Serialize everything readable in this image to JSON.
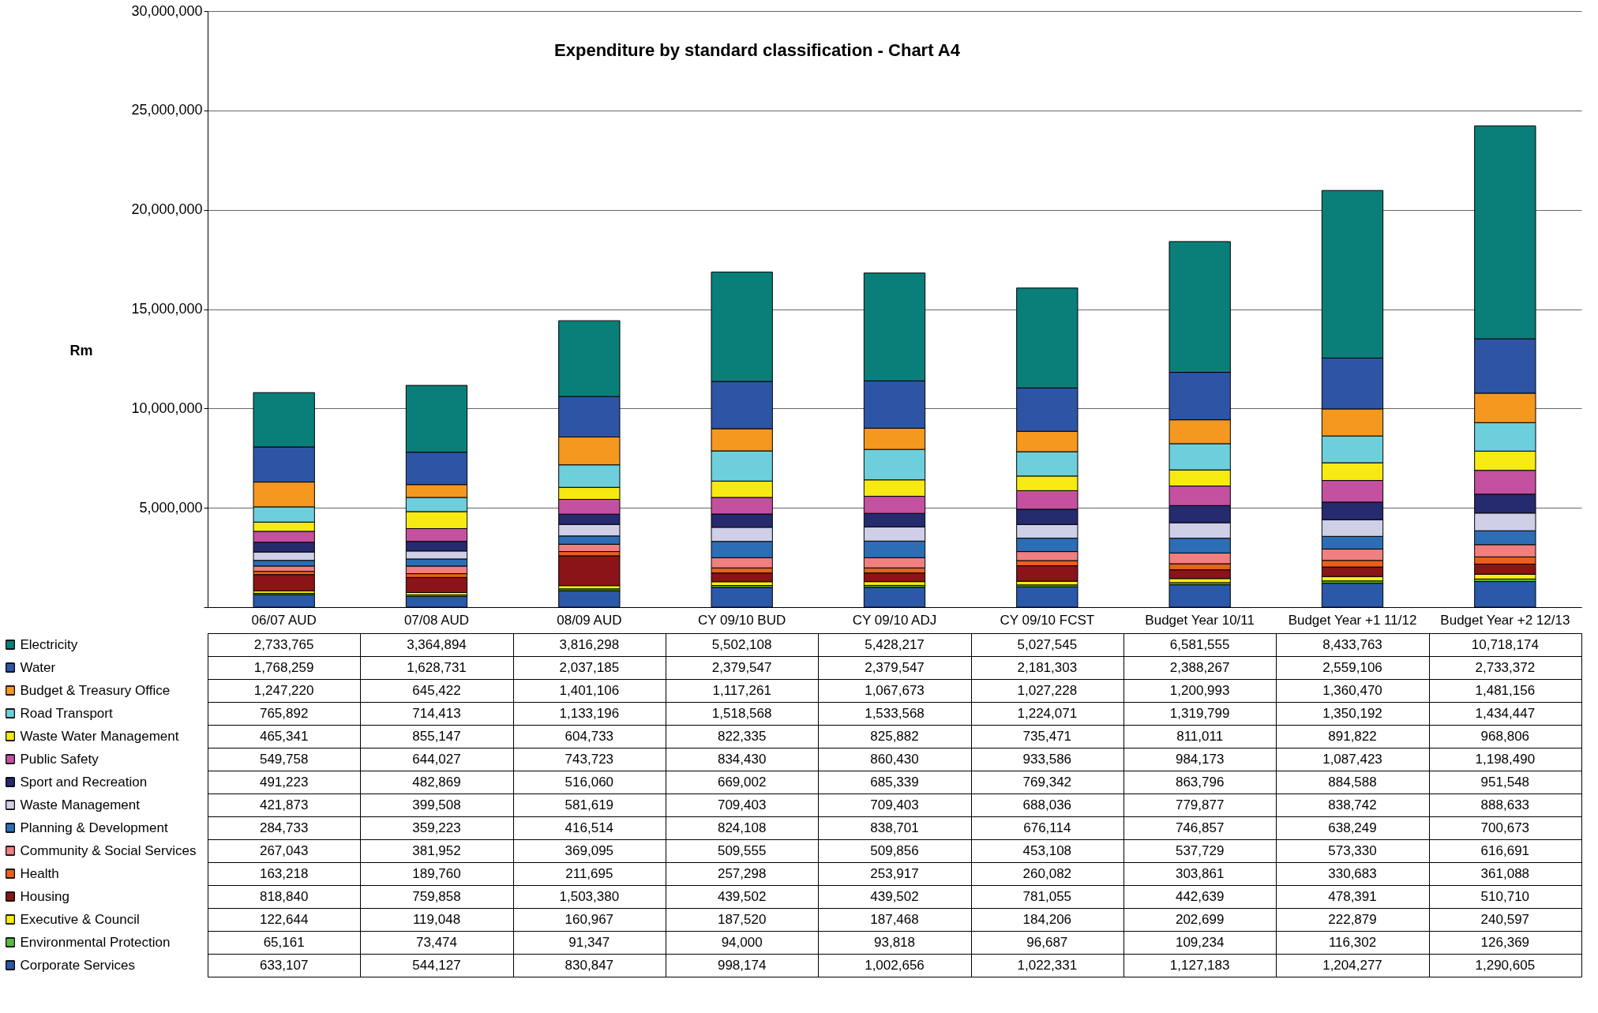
{
  "chart_data": {
    "type": "bar",
    "title": "Expenditure by standard classification - Chart A4",
    "ylabel": "Rm",
    "categories": [
      "06/07 AUD",
      "07/08 AUD",
      "08/09 AUD",
      "CY 09/10 BUD",
      "CY  09/10 ADJ",
      "CY 09/10 FCST",
      "Budget Year 10/11",
      "Budget Year +1 11/12",
      "Budget Year +2 12/13"
    ],
    "stacked": true,
    "ylim": [
      0,
      30000000
    ],
    "yticks": [
      {
        "value": 0,
        "label": null
      },
      {
        "value": 5000000,
        "label": "5,000,000"
      },
      {
        "value": 10000000,
        "label": "10,000,000"
      },
      {
        "value": 15000000,
        "label": "15,000,000"
      },
      {
        "value": 20000000,
        "label": "20,000,000"
      },
      {
        "value": 25000000,
        "label": "25,000,000"
      },
      {
        "value": 30000000,
        "label": "30,000,000"
      }
    ],
    "grid": "y",
    "legend": "bottom",
    "series": [
      {
        "name": "Corporate Services",
        "color": "#2b58a8",
        "values": [
          633107,
          544127,
          830847,
          998174,
          1002656,
          1022331,
          1127183,
          1204277,
          1290605
        ],
        "value_labels": [
          "633,107",
          "544,127",
          "830,847",
          "998,174",
          "1,002,656",
          "1,022,331",
          "1,127,183",
          "1,204,277",
          "1,290,605"
        ]
      },
      {
        "name": "Environmental Protection",
        "color": "#5bb947",
        "values": [
          65161,
          73474,
          91347,
          94000,
          93818,
          96687,
          109234,
          116302,
          126369
        ],
        "value_labels": [
          "65,161",
          "73,474",
          "91,347",
          "94,000",
          "93,818",
          "96,687",
          "109,234",
          "116,302",
          "126,369"
        ]
      },
      {
        "name": "Executive & Council",
        "color": "#f7ee0e",
        "values": [
          122644,
          119048,
          160967,
          187520,
          187468,
          184206,
          202699,
          222879,
          240597
        ],
        "value_labels": [
          "122,644",
          "119,048",
          "160,967",
          "187,520",
          "187,468",
          "184,206",
          "202,699",
          "222,879",
          "240,597"
        ]
      },
      {
        "name": "Housing",
        "color": "#8a1417",
        "values": [
          818840,
          759858,
          1503380,
          439502,
          439502,
          781055,
          442639,
          478391,
          510710
        ],
        "value_labels": [
          "818,840",
          "759,858",
          "1,503,380",
          "439,502",
          "439,502",
          "781,055",
          "442,639",
          "478,391",
          "510,710"
        ]
      },
      {
        "name": "Health",
        "color": "#e8601e",
        "values": [
          163218,
          189760,
          211695,
          257298,
          253917,
          260082,
          303861,
          330683,
          361088
        ],
        "value_labels": [
          "163,218",
          "189,760",
          "211,695",
          "257,298",
          "253,917",
          "260,082",
          "303,861",
          "330,683",
          "361,088"
        ]
      },
      {
        "name": "Community & Social Services",
        "color": "#f07f80",
        "values": [
          267043,
          381952,
          369095,
          509555,
          509856,
          453108,
          537729,
          573330,
          616691
        ],
        "value_labels": [
          "267,043",
          "381,952",
          "369,095",
          "509,555",
          "509,856",
          "453,108",
          "537,729",
          "573,330",
          "616,691"
        ]
      },
      {
        "name": "Planning & Development",
        "color": "#2d6db5",
        "values": [
          284733,
          359223,
          416514,
          824108,
          838701,
          676114,
          746857,
          638249,
          700673
        ],
        "value_labels": [
          "284,733",
          "359,223",
          "416,514",
          "824,108",
          "838,701",
          "676,114",
          "746,857",
          "638,249",
          "700,673"
        ]
      },
      {
        "name": "Waste Management",
        "color": "#cfcfe8",
        "values": [
          421873,
          399508,
          581619,
          709403,
          709403,
          688036,
          779877,
          838742,
          888633
        ],
        "value_labels": [
          "421,873",
          "399,508",
          "581,619",
          "709,403",
          "709,403",
          "688,036",
          "779,877",
          "838,742",
          "888,633"
        ]
      },
      {
        "name": "Sport and Recreation",
        "color": "#262a6e",
        "values": [
          491223,
          482869,
          516060,
          669002,
          685339,
          769342,
          863796,
          884588,
          951548
        ],
        "value_labels": [
          "491,223",
          "482,869",
          "516,060",
          "669,002",
          "685,339",
          "769,342",
          "863,796",
          "884,588",
          "951,548"
        ]
      },
      {
        "name": "Public Safety",
        "color": "#c450a0",
        "values": [
          549758,
          644027,
          743723,
          834430,
          860430,
          933586,
          984173,
          1087423,
          1198490
        ],
        "value_labels": [
          "549,758",
          "644,027",
          "743,723",
          "834,430",
          "860,430",
          "933,586",
          "984,173",
          "1,087,423",
          "1,198,490"
        ]
      },
      {
        "name": "Waste Water Management",
        "color": "#f6ea12",
        "values": [
          465341,
          855147,
          604733,
          822335,
          825882,
          735471,
          811011,
          891822,
          968806
        ],
        "value_labels": [
          "465,341",
          "855,147",
          "604,733",
          "822,335",
          "825,882",
          "735,471",
          "811,011",
          "891,822",
          "968,806"
        ]
      },
      {
        "name": "Road Transport",
        "color": "#6dcfdc",
        "values": [
          765892,
          714413,
          1133196,
          1518568,
          1533568,
          1224071,
          1319799,
          1350192,
          1434447
        ],
        "value_labels": [
          "765,892",
          "714,413",
          "1,133,196",
          "1,518,568",
          "1,533,568",
          "1,224,071",
          "1,319,799",
          "1,350,192",
          "1,434,447"
        ]
      },
      {
        "name": "Budget & Treasury Office",
        "color": "#f4981f",
        "values": [
          1247220,
          645422,
          1401106,
          1117261,
          1067673,
          1027228,
          1200993,
          1360470,
          1481156
        ],
        "value_labels": [
          "1,247,220",
          "645,422",
          "1,401,106",
          "1,117,261",
          "1,067,673",
          "1,027,228",
          "1,200,993",
          "1,360,470",
          "1,481,156"
        ]
      },
      {
        "name": "Water",
        "color": "#2e55a5",
        "values": [
          1768259,
          1628731,
          2037185,
          2379547,
          2379547,
          2181303,
          2388267,
          2559106,
          2733372
        ],
        "value_labels": [
          "1,768,259",
          "1,628,731",
          "2,037,185",
          "2,379,547",
          "2,379,547",
          "2,181,303",
          "2,388,267",
          "2,559,106",
          "2,733,372"
        ]
      },
      {
        "name": "Electricity",
        "color": "#0a7f7a",
        "values": [
          2733765,
          3364894,
          3816298,
          5502108,
          5428217,
          5027545,
          6581555,
          8433763,
          10718174
        ],
        "value_labels": [
          "2,733,765",
          "3,364,894",
          "3,816,298",
          "5,502,108",
          "5,428,217",
          "5,027,545",
          "6,581,555",
          "8,433,763",
          "10,718,174"
        ]
      }
    ]
  }
}
